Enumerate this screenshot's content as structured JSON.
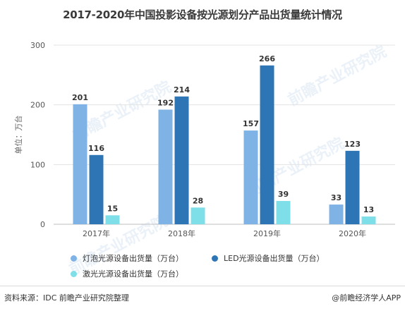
{
  "title": "2017-2020年中国投影设备按光源划分产品出货量统计情况",
  "source_text": "资料来源：IDC 前瞻产业研究院整理",
  "brand_text": "@前瞻经济学人APP",
  "watermark_text": "前瞻产业研究院",
  "chart_data": {
    "type": "bar",
    "title": "2017-2020年中国投影设备按光源划分产品出货量统计情况",
    "xlabel": "",
    "ylabel": "单位：万台",
    "ylim": [
      0,
      300
    ],
    "yticks": [
      0,
      100,
      200,
      300
    ],
    "grid": true,
    "legend_position": "bottom",
    "categories": [
      "2017年",
      "2018年",
      "2019年",
      "2020年"
    ],
    "series": [
      {
        "name": "灯泡光源设备出货量（万台）",
        "values": [
          201,
          192,
          157,
          33
        ],
        "color": "#7fb2e5"
      },
      {
        "name": "LED光源设备出货量（万台）",
        "values": [
          116,
          214,
          266,
          123
        ],
        "color": "#2e75b6"
      },
      {
        "name": "激光光源设备出货量（万台）",
        "values": [
          15,
          28,
          39,
          13
        ],
        "color": "#7fdfe8"
      }
    ]
  }
}
